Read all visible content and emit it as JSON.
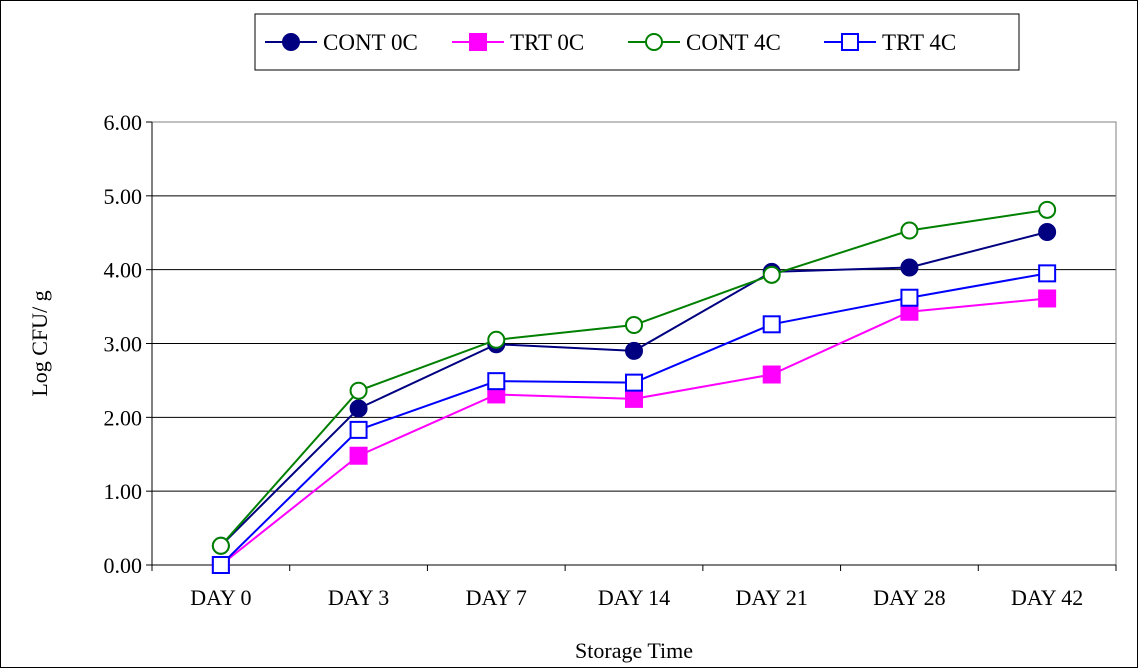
{
  "chart_data": {
    "type": "line",
    "title": "",
    "xlabel": "Storage Time",
    "ylabel": "Log CFU/ g",
    "categories": [
      "DAY 0",
      "DAY 3",
      "DAY 7",
      "DAY 14",
      "DAY 21",
      "DAY 28",
      "DAY 42"
    ],
    "ylim": [
      0,
      6
    ],
    "yticks": [
      "0.00",
      "1.00",
      "2.00",
      "3.00",
      "4.00",
      "5.00",
      "6.00"
    ],
    "grid": "horizontal",
    "legend_position": "top",
    "plot_background": "#ffffff",
    "series": [
      {
        "name": "CONT 0C",
        "values": [
          0.26,
          2.12,
          2.99,
          2.9,
          3.97,
          4.03,
          4.51
        ],
        "color": "#000080",
        "marker": "filled-circle"
      },
      {
        "name": "TRT 0C",
        "values": [
          0.0,
          1.48,
          2.31,
          2.25,
          2.58,
          3.43,
          3.61
        ],
        "color": "#ff00ff",
        "marker": "filled-square"
      },
      {
        "name": "CONT 4C",
        "values": [
          0.26,
          2.36,
          3.05,
          3.25,
          3.93,
          4.53,
          4.81
        ],
        "color": "#008000",
        "marker": "open-circle"
      },
      {
        "name": "TRT 4C",
        "values": [
          0.0,
          1.83,
          2.49,
          2.47,
          3.26,
          3.62,
          3.95
        ],
        "color": "#0000ff",
        "marker": "open-square"
      }
    ]
  }
}
